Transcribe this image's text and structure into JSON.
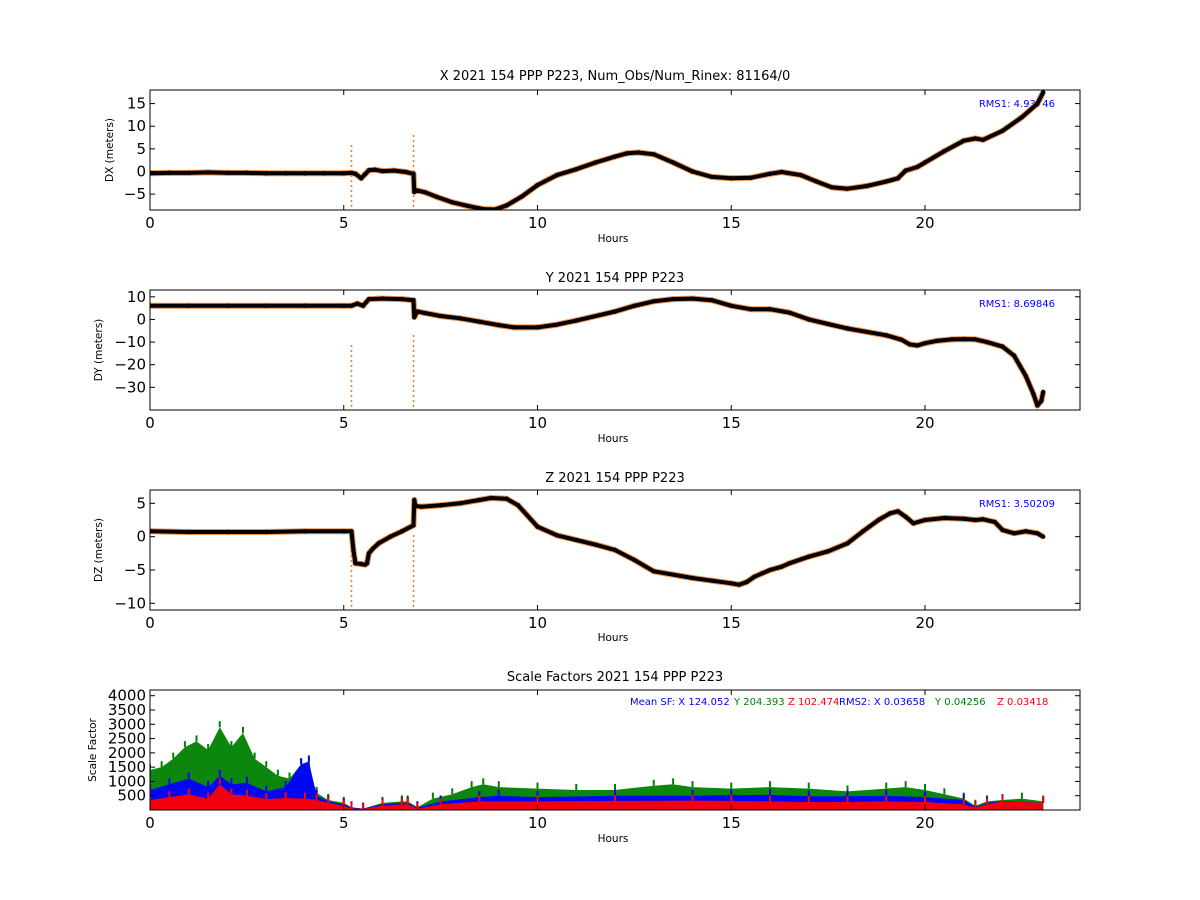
{
  "chart_data": [
    {
      "type": "scatter",
      "title": "X 2021 154 PPP  P223, Num_Obs/Num_Rinex: 81164/0",
      "xlabel": "Hours",
      "ylabel": "DX (meters)",
      "xlim": [
        0,
        24
      ],
      "ylim": [
        -8.5,
        18
      ],
      "xticks": [
        0,
        5,
        10,
        15,
        20
      ],
      "yticks": [
        -5,
        0,
        5,
        10,
        15
      ],
      "annotation": "RMS1:  4.93746",
      "annotation_color": "#0000ff",
      "colors": {
        "trace": "#000000",
        "outlier": "#e87d2e"
      },
      "series": [
        {
          "x": [
            0,
            0.5,
            1,
            1.5,
            2,
            2.5,
            3,
            3.5,
            4,
            4.5,
            5,
            5.2,
            5.3,
            5.45,
            5.55,
            5.65,
            5.8,
            6,
            6.3,
            6.6,
            6.8,
            6.82,
            6.9,
            7.1,
            7.4,
            7.8,
            8.2,
            8.6,
            8.9,
            9.2,
            9.6,
            10,
            10.5,
            11,
            11.5,
            12,
            12.3,
            12.6,
            13,
            13.5,
            14,
            14.5,
            15,
            15.5,
            16,
            16.3,
            16.8,
            17.2,
            17.6,
            18,
            18.5,
            19,
            19.3,
            19.5,
            19.8,
            20,
            20.5,
            21,
            21.3,
            21.5,
            22,
            22.5,
            22.9,
            23.05
          ],
          "y": [
            -0.4,
            -0.3,
            -0.3,
            -0.2,
            -0.3,
            -0.3,
            -0.4,
            -0.4,
            -0.4,
            -0.4,
            -0.4,
            -0.3,
            -0.5,
            -1.5,
            -0.6,
            0.3,
            0.4,
            0.1,
            0.2,
            -0.1,
            -0.5,
            -4.5,
            -4.2,
            -4.6,
            -5.6,
            -6.8,
            -7.6,
            -8.3,
            -8.4,
            -7.5,
            -5.5,
            -3.0,
            -0.8,
            0.5,
            2.0,
            3.3,
            4.0,
            4.2,
            3.8,
            2.0,
            0.0,
            -1.2,
            -1.5,
            -1.4,
            -0.5,
            -0.1,
            -0.8,
            -2.2,
            -3.5,
            -3.8,
            -3.2,
            -2.2,
            -1.5,
            0.2,
            1.0,
            2.0,
            4.5,
            6.8,
            7.3,
            7.0,
            9.0,
            12.0,
            15.0,
            17.5
          ]
        }
      ]
    },
    {
      "type": "scatter",
      "title": "Y 2021 154 PPP  P223",
      "xlabel": "Hours",
      "ylabel": "DY (meters)",
      "xlim": [
        0,
        24
      ],
      "ylim": [
        -40,
        13
      ],
      "xticks": [
        0,
        5,
        10,
        15,
        20
      ],
      "yticks": [
        -30,
        -20,
        -10,
        0,
        10
      ],
      "annotation": "RMS1:  8.69846",
      "annotation_color": "#0000ff",
      "colors": {
        "trace": "#000000",
        "outlier": "#e87d2e"
      },
      "series": [
        {
          "x": [
            0,
            1,
            2,
            3,
            4,
            5,
            5.2,
            5.35,
            5.5,
            5.65,
            6,
            6.5,
            6.8,
            6.82,
            6.9,
            7.1,
            7.5,
            8,
            8.5,
            9,
            9.4,
            10,
            10.5,
            11,
            12,
            12.5,
            13,
            13.5,
            14,
            14.5,
            15,
            15.5,
            16,
            16.5,
            17,
            17.5,
            18,
            19,
            19.4,
            19.6,
            19.8,
            20,
            20.3,
            20.7,
            21,
            21.3,
            21.6,
            22,
            22.3,
            22.6,
            22.8,
            22.9,
            23.0,
            23.05
          ],
          "y": [
            6,
            6,
            6,
            6,
            6,
            6,
            6,
            7,
            6,
            9,
            9.2,
            9,
            8.5,
            1,
            3.5,
            2.8,
            1.5,
            0.5,
            -1,
            -2.5,
            -3.5,
            -3.5,
            -2.3,
            -0.5,
            3.5,
            6,
            8,
            9,
            9.2,
            8.5,
            6,
            4.5,
            4.5,
            3,
            0,
            -2,
            -4,
            -7,
            -9,
            -11,
            -11.5,
            -10.5,
            -9.5,
            -8.8,
            -8.7,
            -8.8,
            -10,
            -12,
            -16,
            -25,
            -33,
            -38,
            -36,
            -32
          ]
        }
      ]
    },
    {
      "type": "scatter",
      "title": "Z 2021 154 PPP  P223",
      "xlabel": "Hours",
      "ylabel": "DZ (meters)",
      "xlim": [
        0,
        24
      ],
      "ylim": [
        -11,
        7
      ],
      "xticks": [
        0,
        5,
        10,
        15,
        20
      ],
      "yticks": [
        -10,
        -5,
        0,
        5
      ],
      "annotation": "RMS1:  3.50209",
      "annotation_color": "#0000ff",
      "colors": {
        "trace": "#000000",
        "outlier": "#e87d2e"
      },
      "series": [
        {
          "x": [
            0,
            1,
            2,
            3,
            4,
            5,
            5.2,
            5.25,
            5.3,
            5.45,
            5.55,
            5.6,
            5.65,
            5.75,
            5.9,
            6.2,
            6.5,
            6.8,
            6.82,
            6.85,
            7.0,
            7.5,
            8,
            8.5,
            8.8,
            9.2,
            9.5,
            10,
            10.5,
            11,
            11.5,
            12,
            12.5,
            13,
            14,
            14.5,
            15,
            15.2,
            15.4,
            15.6,
            15.8,
            16,
            16.3,
            16.5,
            17,
            17.5,
            18,
            18.4,
            18.8,
            19.1,
            19.3,
            19.5,
            19.7,
            20,
            20.5,
            21,
            21.3,
            21.5,
            21.8,
            22,
            22.3,
            22.6,
            22.9,
            23.05
          ],
          "y": [
            0.8,
            0.7,
            0.7,
            0.7,
            0.8,
            0.8,
            0.8,
            -2,
            -4,
            -4.1,
            -4.2,
            -4.0,
            -2.5,
            -1.8,
            -1.0,
            0,
            0.8,
            1.7,
            5.5,
            4.6,
            4.5,
            4.7,
            5.0,
            5.5,
            5.8,
            5.7,
            4.7,
            1.5,
            0.2,
            -0.5,
            -1.2,
            -2.0,
            -3.5,
            -5.2,
            -6.2,
            -6.6,
            -7.0,
            -7.2,
            -6.8,
            -6.0,
            -5.5,
            -5.0,
            -4.5,
            -4.0,
            -3.0,
            -2.2,
            -1.0,
            0.8,
            2.5,
            3.5,
            3.8,
            3.0,
            2.0,
            2.5,
            2.8,
            2.7,
            2.5,
            2.6,
            2.2,
            1.0,
            0.5,
            0.8,
            0.5,
            0
          ]
        }
      ]
    },
    {
      "type": "scatter",
      "title": "Scale Factors 2021 154 PPP  P223",
      "xlabel": "Hours",
      "ylabel": "Scale Factor",
      "xlim": [
        0,
        24
      ],
      "ylim": [
        0,
        4200
      ],
      "xticks": [
        0,
        5,
        10,
        15,
        20
      ],
      "yticks": [
        500,
        1000,
        1500,
        2000,
        2500,
        3000,
        3500,
        4000
      ],
      "annotations": {
        "mean_sf_label": "Mean SF: X 124.052",
        "mean_y": "Y 204.393",
        "mean_z": "Z 102.474",
        "rms2_label": "RMS2: X  0.03658",
        "rms2_y": "Y  0.04256",
        "rms2_z": "Z  0.03418"
      },
      "colors": {
        "X": "#0000ff",
        "Y": "#008000",
        "Z": "#ff0000"
      },
      "series": [
        {
          "name": "Y",
          "color": "#008000",
          "x": [
            0,
            0.3,
            0.6,
            0.9,
            1.2,
            1.5,
            1.8,
            2.1,
            2.4,
            2.7,
            3.0,
            3.3,
            3.6,
            3.9,
            4.1,
            4.3,
            4.6,
            5.0,
            5.2,
            5.5,
            6.0,
            6.5,
            6.65,
            6.9,
            7.3,
            7.8,
            8.3,
            8.6,
            9.0,
            10,
            11,
            12,
            13,
            13.5,
            14,
            15,
            16,
            17,
            18,
            19,
            19.5,
            20,
            20.5,
            21,
            21.3,
            21.6,
            22,
            22.5,
            23.05
          ],
          "y": [
            1400,
            1500,
            1800,
            2200,
            2400,
            2100,
            2900,
            2200,
            2700,
            1800,
            1500,
            1200,
            1100,
            1600,
            1500,
            600,
            350,
            250,
            100,
            50,
            250,
            300,
            300,
            100,
            400,
            550,
            800,
            900,
            800,
            750,
            700,
            700,
            850,
            900,
            800,
            750,
            800,
            750,
            650,
            750,
            800,
            700,
            550,
            400,
            150,
            300,
            350,
            400,
            300
          ]
        },
        {
          "name": "X",
          "color": "#0000ff",
          "x": [
            0,
            0.5,
            1,
            1.5,
            1.8,
            2.1,
            2.5,
            3,
            3.5,
            3.9,
            4.1,
            4.3,
            4.6,
            5.0,
            5.2,
            5.5,
            6.0,
            6.5,
            6.65,
            6.9,
            7.5,
            8.5,
            9,
            10,
            12,
            14,
            15,
            16,
            17,
            18,
            19,
            20,
            21,
            21.3,
            21.6,
            22,
            23.05
          ],
          "y": [
            700,
            900,
            1100,
            800,
            1200,
            900,
            950,
            650,
            800,
            1600,
            1700,
            500,
            300,
            200,
            80,
            50,
            200,
            250,
            250,
            80,
            300,
            450,
            500,
            450,
            500,
            500,
            520,
            530,
            480,
            480,
            500,
            450,
            350,
            100,
            250,
            320,
            250
          ]
        },
        {
          "name": "Z",
          "color": "#ff0000",
          "x": [
            0,
            0.5,
            1,
            1.5,
            1.8,
            2.1,
            2.5,
            3,
            3.5,
            4.0,
            4.3,
            4.6,
            5.0,
            5.2,
            5.5,
            6.0,
            6.5,
            6.65,
            6.9,
            7.5,
            8.5,
            10,
            12,
            14,
            15,
            16,
            17,
            18,
            19,
            20,
            21,
            21.3,
            21.6,
            22,
            23.05
          ],
          "y": [
            350,
            450,
            550,
            400,
            900,
            550,
            500,
            380,
            420,
            400,
            350,
            250,
            150,
            50,
            40,
            150,
            200,
            200,
            50,
            200,
            300,
            300,
            320,
            330,
            320,
            300,
            280,
            280,
            300,
            280,
            200,
            80,
            200,
            300,
            250
          ]
        }
      ]
    }
  ]
}
